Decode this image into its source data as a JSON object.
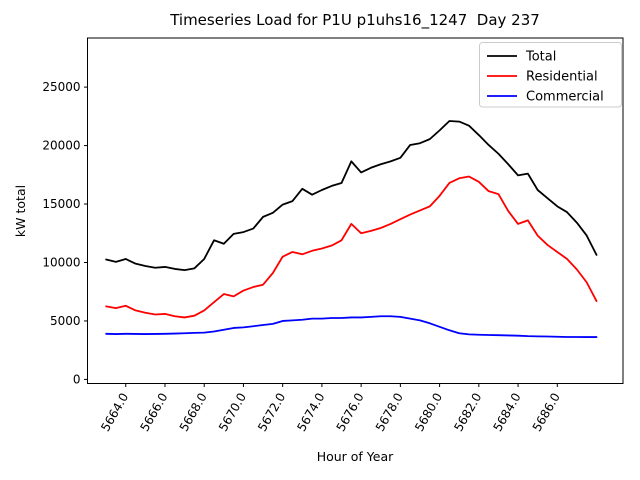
{
  "title": "Timeseries Load for P1U p1uhs16_1247  Day 237",
  "chart_data": {
    "type": "line",
    "title": "Timeseries Load for P1U p1uhs16_1247  Day 237",
    "xlabel": "Hour of Year",
    "ylabel": "kW total",
    "grid": false,
    "xlim": [
      5662.05,
      5689.35
    ],
    "ylim": [
      -350,
      29200
    ],
    "x_ticks": [
      5664,
      5666,
      5668,
      5670,
      5672,
      5674,
      5676,
      5678,
      5680,
      5682,
      5684,
      5686
    ],
    "x_tick_labels": [
      "5664.0",
      "5666.0",
      "5668.0",
      "5670.0",
      "5672.0",
      "5674.0",
      "5676.0",
      "5678.0",
      "5680.0",
      "5682.0",
      "5684.0",
      "5686.0"
    ],
    "x_tick_rotation_deg": 60,
    "y_ticks": [
      0,
      5000,
      10000,
      15000,
      20000,
      25000
    ],
    "y_tick_labels": [
      "0",
      "5000",
      "10000",
      "15000",
      "20000",
      "25000"
    ],
    "legend": {
      "position": "upper right",
      "entries": [
        {
          "label": "Total",
          "color": "#000000"
        },
        {
          "label": "Residential",
          "color": "#ff0000"
        },
        {
          "label": "Commercial",
          "color": "#0000ff"
        }
      ]
    },
    "hours": [
      5663.0,
      5663.5,
      5664.0,
      5664.5,
      5665.0,
      5665.5,
      5666.0,
      5666.5,
      5667.0,
      5667.5,
      5668.0,
      5668.5,
      5669.0,
      5669.5,
      5670.0,
      5670.5,
      5671.0,
      5671.5,
      5672.0,
      5672.5,
      5673.0,
      5673.5,
      5674.0,
      5674.5,
      5675.0,
      5675.5,
      5676.0,
      5676.5,
      5677.0,
      5677.5,
      5678.0,
      5678.5,
      5679.0,
      5679.5,
      5680.0,
      5680.5,
      5681.0,
      5681.5,
      5682.0,
      5682.5,
      5683.0,
      5683.5,
      5684.0,
      5684.5,
      5685.0,
      5685.5,
      5686.0,
      5686.5,
      5687.0,
      5687.5,
      5688.0
    ],
    "series": [
      {
        "name": "Total",
        "color": "#000000",
        "values": [
          10250,
          10050,
          10300,
          9900,
          9700,
          9550,
          9620,
          9450,
          9350,
          9500,
          10300,
          11900,
          11600,
          12450,
          12600,
          12900,
          13900,
          14250,
          14950,
          15250,
          16300,
          15800,
          16200,
          16550,
          16800,
          18650,
          17700,
          18100,
          18400,
          18650,
          18950,
          20050,
          20200,
          20550,
          21300,
          22100,
          22050,
          21700,
          20900,
          20050,
          19300,
          18400,
          17450,
          17600,
          16200,
          15500,
          14800,
          14300,
          13400,
          12300,
          10650
        ]
      },
      {
        "name": "Residential",
        "color": "#ff0000",
        "values": [
          6250,
          6100,
          6300,
          5900,
          5700,
          5550,
          5600,
          5400,
          5300,
          5450,
          5900,
          6600,
          7300,
          7100,
          7600,
          7900,
          8100,
          9100,
          10500,
          10900,
          10700,
          11000,
          11200,
          11450,
          11900,
          13300,
          12500,
          12700,
          12950,
          13300,
          13700,
          14100,
          14450,
          14800,
          15700,
          16800,
          17200,
          17350,
          16900,
          16100,
          15850,
          14400,
          13300,
          13600,
          12300,
          11500,
          10900,
          10300,
          9400,
          8300,
          6700
        ]
      },
      {
        "name": "Commercial",
        "color": "#0000ff",
        "values": [
          3900,
          3880,
          3900,
          3890,
          3880,
          3890,
          3900,
          3920,
          3950,
          3980,
          4000,
          4100,
          4250,
          4400,
          4450,
          4550,
          4650,
          4750,
          5000,
          5050,
          5100,
          5200,
          5200,
          5250,
          5250,
          5300,
          5300,
          5350,
          5400,
          5400,
          5350,
          5200,
          5050,
          4800,
          4500,
          4200,
          3950,
          3850,
          3820,
          3800,
          3780,
          3760,
          3740,
          3700,
          3680,
          3670,
          3650,
          3630,
          3630,
          3620,
          3620
        ]
      }
    ]
  }
}
